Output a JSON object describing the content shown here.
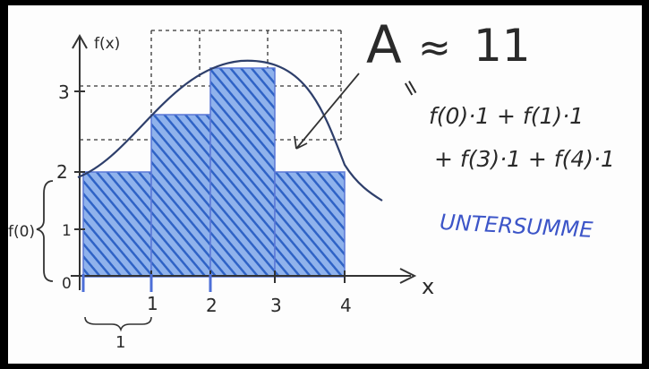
{
  "axes": {
    "y_label": "f(x)",
    "x_label": "x",
    "y_ticks": [
      "0",
      "1",
      "2",
      "3"
    ],
    "x_ticks": [
      "1",
      "2",
      "3",
      "4"
    ]
  },
  "annotations": {
    "brace_f0": "f(0)",
    "width_marker": "1",
    "area_symbol": "A",
    "approx": "≈",
    "area_value": "11",
    "equals_sign": "=",
    "sum_line1": "f(0)·1 + f(1)·1",
    "sum_line2": "+ f(3)·1 + f(4)·1",
    "term_label": "UNTERSUMME"
  },
  "colors": {
    "ink": "#2a2a2a",
    "blue": "#3c55c8",
    "hatch": "#4d7fd3",
    "board": "#fdfdfd",
    "frame": "#000000"
  }
}
